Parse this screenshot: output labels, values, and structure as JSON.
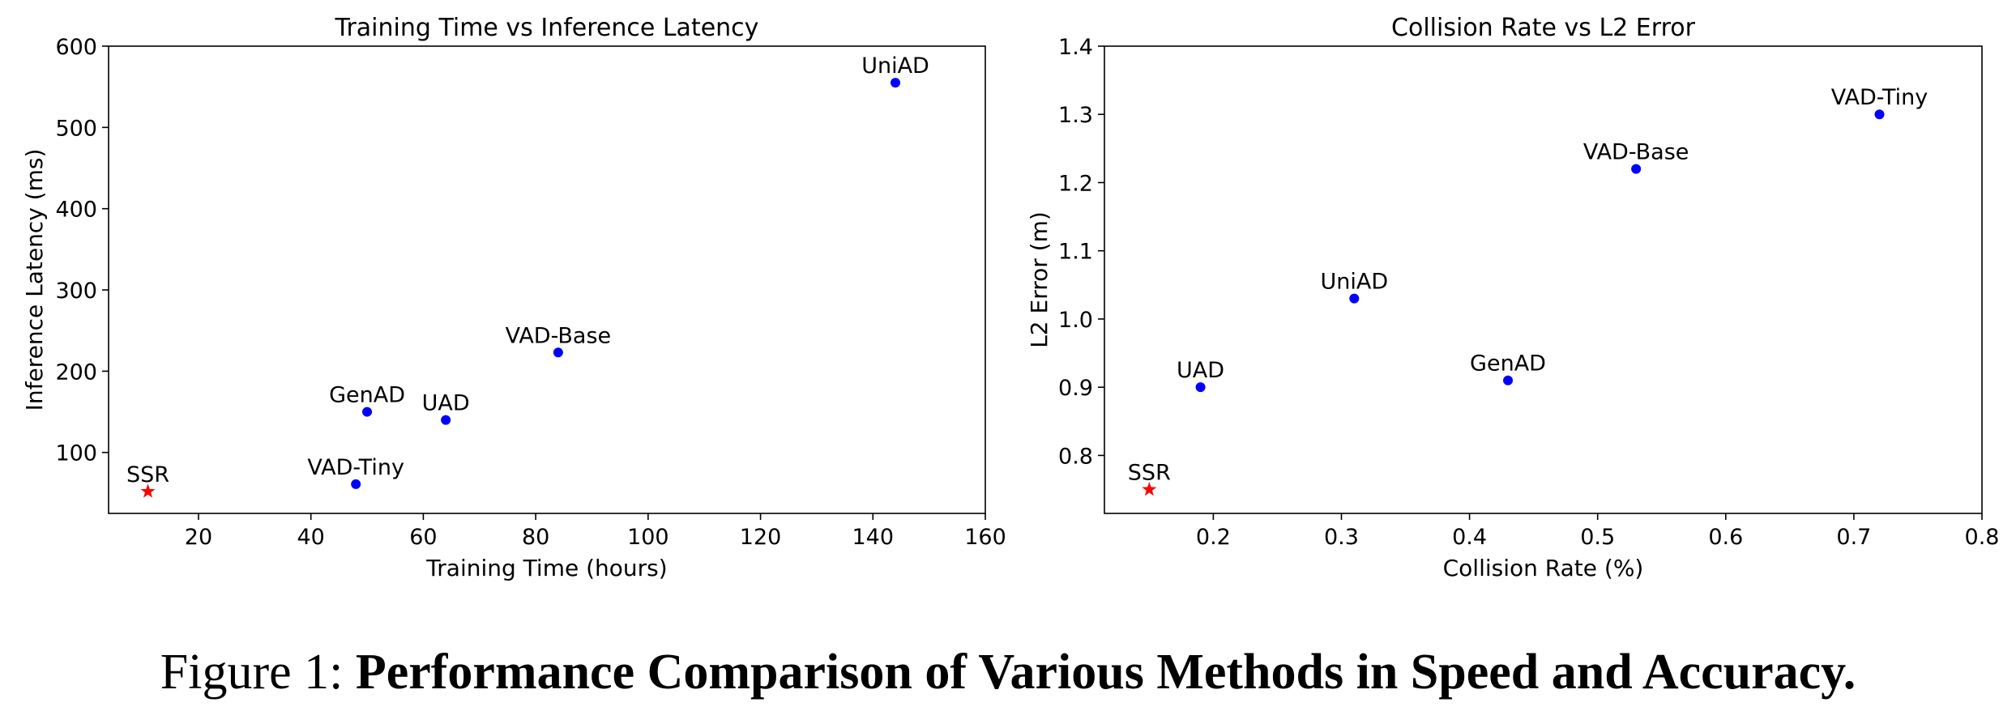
{
  "figure": {
    "caption_prefix": "Figure 1:",
    "caption_title": "Performance Comparison of Various Methods in Speed and Accuracy."
  },
  "colors": {
    "point": "#0000ff",
    "highlight": "#ff0000"
  },
  "chart_data": [
    {
      "type": "scatter",
      "title": "Training Time vs Inference Latency",
      "xlabel": "Training Time (hours)",
      "ylabel": "Inference Latency (ms)",
      "xlim": [
        4,
        160
      ],
      "ylim": [
        25,
        600
      ],
      "xticks": [
        20,
        40,
        60,
        80,
        100,
        120,
        140,
        160
      ],
      "yticks": [
        100,
        200,
        300,
        400,
        500,
        600
      ],
      "tick_labels_x": [
        "20",
        "40",
        "60",
        "80",
        "100",
        "120",
        "140",
        "160"
      ],
      "tick_labels_y": [
        "100",
        "200",
        "300",
        "400",
        "500",
        "600"
      ],
      "points": [
        {
          "label": "UniAD",
          "x": 144,
          "y": 555,
          "marker": "circle"
        },
        {
          "label": "VAD-Base",
          "x": 84,
          "y": 223,
          "marker": "circle"
        },
        {
          "label": "GenAD",
          "x": 50,
          "y": 150,
          "marker": "circle"
        },
        {
          "label": "UAD",
          "x": 64,
          "y": 140,
          "marker": "circle"
        },
        {
          "label": "VAD-Tiny",
          "x": 48,
          "y": 61,
          "marker": "circle"
        },
        {
          "label": "SSR",
          "x": 11,
          "y": 52,
          "marker": "star"
        }
      ]
    },
    {
      "type": "scatter",
      "title": "Collision Rate vs L2 Error",
      "xlabel": "Collision Rate (%)",
      "ylabel": "L2 Error (m)",
      "xlim": [
        0.115,
        0.8
      ],
      "ylim": [
        0.715,
        1.4
      ],
      "xticks": [
        0.2,
        0.3,
        0.4,
        0.5,
        0.6,
        0.7,
        0.8
      ],
      "yticks": [
        0.8,
        0.9,
        1.0,
        1.1,
        1.2,
        1.3,
        1.4
      ],
      "tick_labels_x": [
        "0.2",
        "0.3",
        "0.4",
        "0.5",
        "0.6",
        "0.7",
        "0.8"
      ],
      "tick_labels_y": [
        "0.8",
        "0.9",
        "1.0",
        "1.1",
        "1.2",
        "1.3",
        "1.4"
      ],
      "points": [
        {
          "label": "VAD-Tiny",
          "x": 0.72,
          "y": 1.3,
          "marker": "circle"
        },
        {
          "label": "VAD-Base",
          "x": 0.53,
          "y": 1.22,
          "marker": "circle"
        },
        {
          "label": "UniAD",
          "x": 0.31,
          "y": 1.03,
          "marker": "circle"
        },
        {
          "label": "GenAD",
          "x": 0.43,
          "y": 0.91,
          "marker": "circle"
        },
        {
          "label": "UAD",
          "x": 0.19,
          "y": 0.9,
          "marker": "circle"
        },
        {
          "label": "SSR",
          "x": 0.15,
          "y": 0.75,
          "marker": "star"
        }
      ]
    }
  ]
}
